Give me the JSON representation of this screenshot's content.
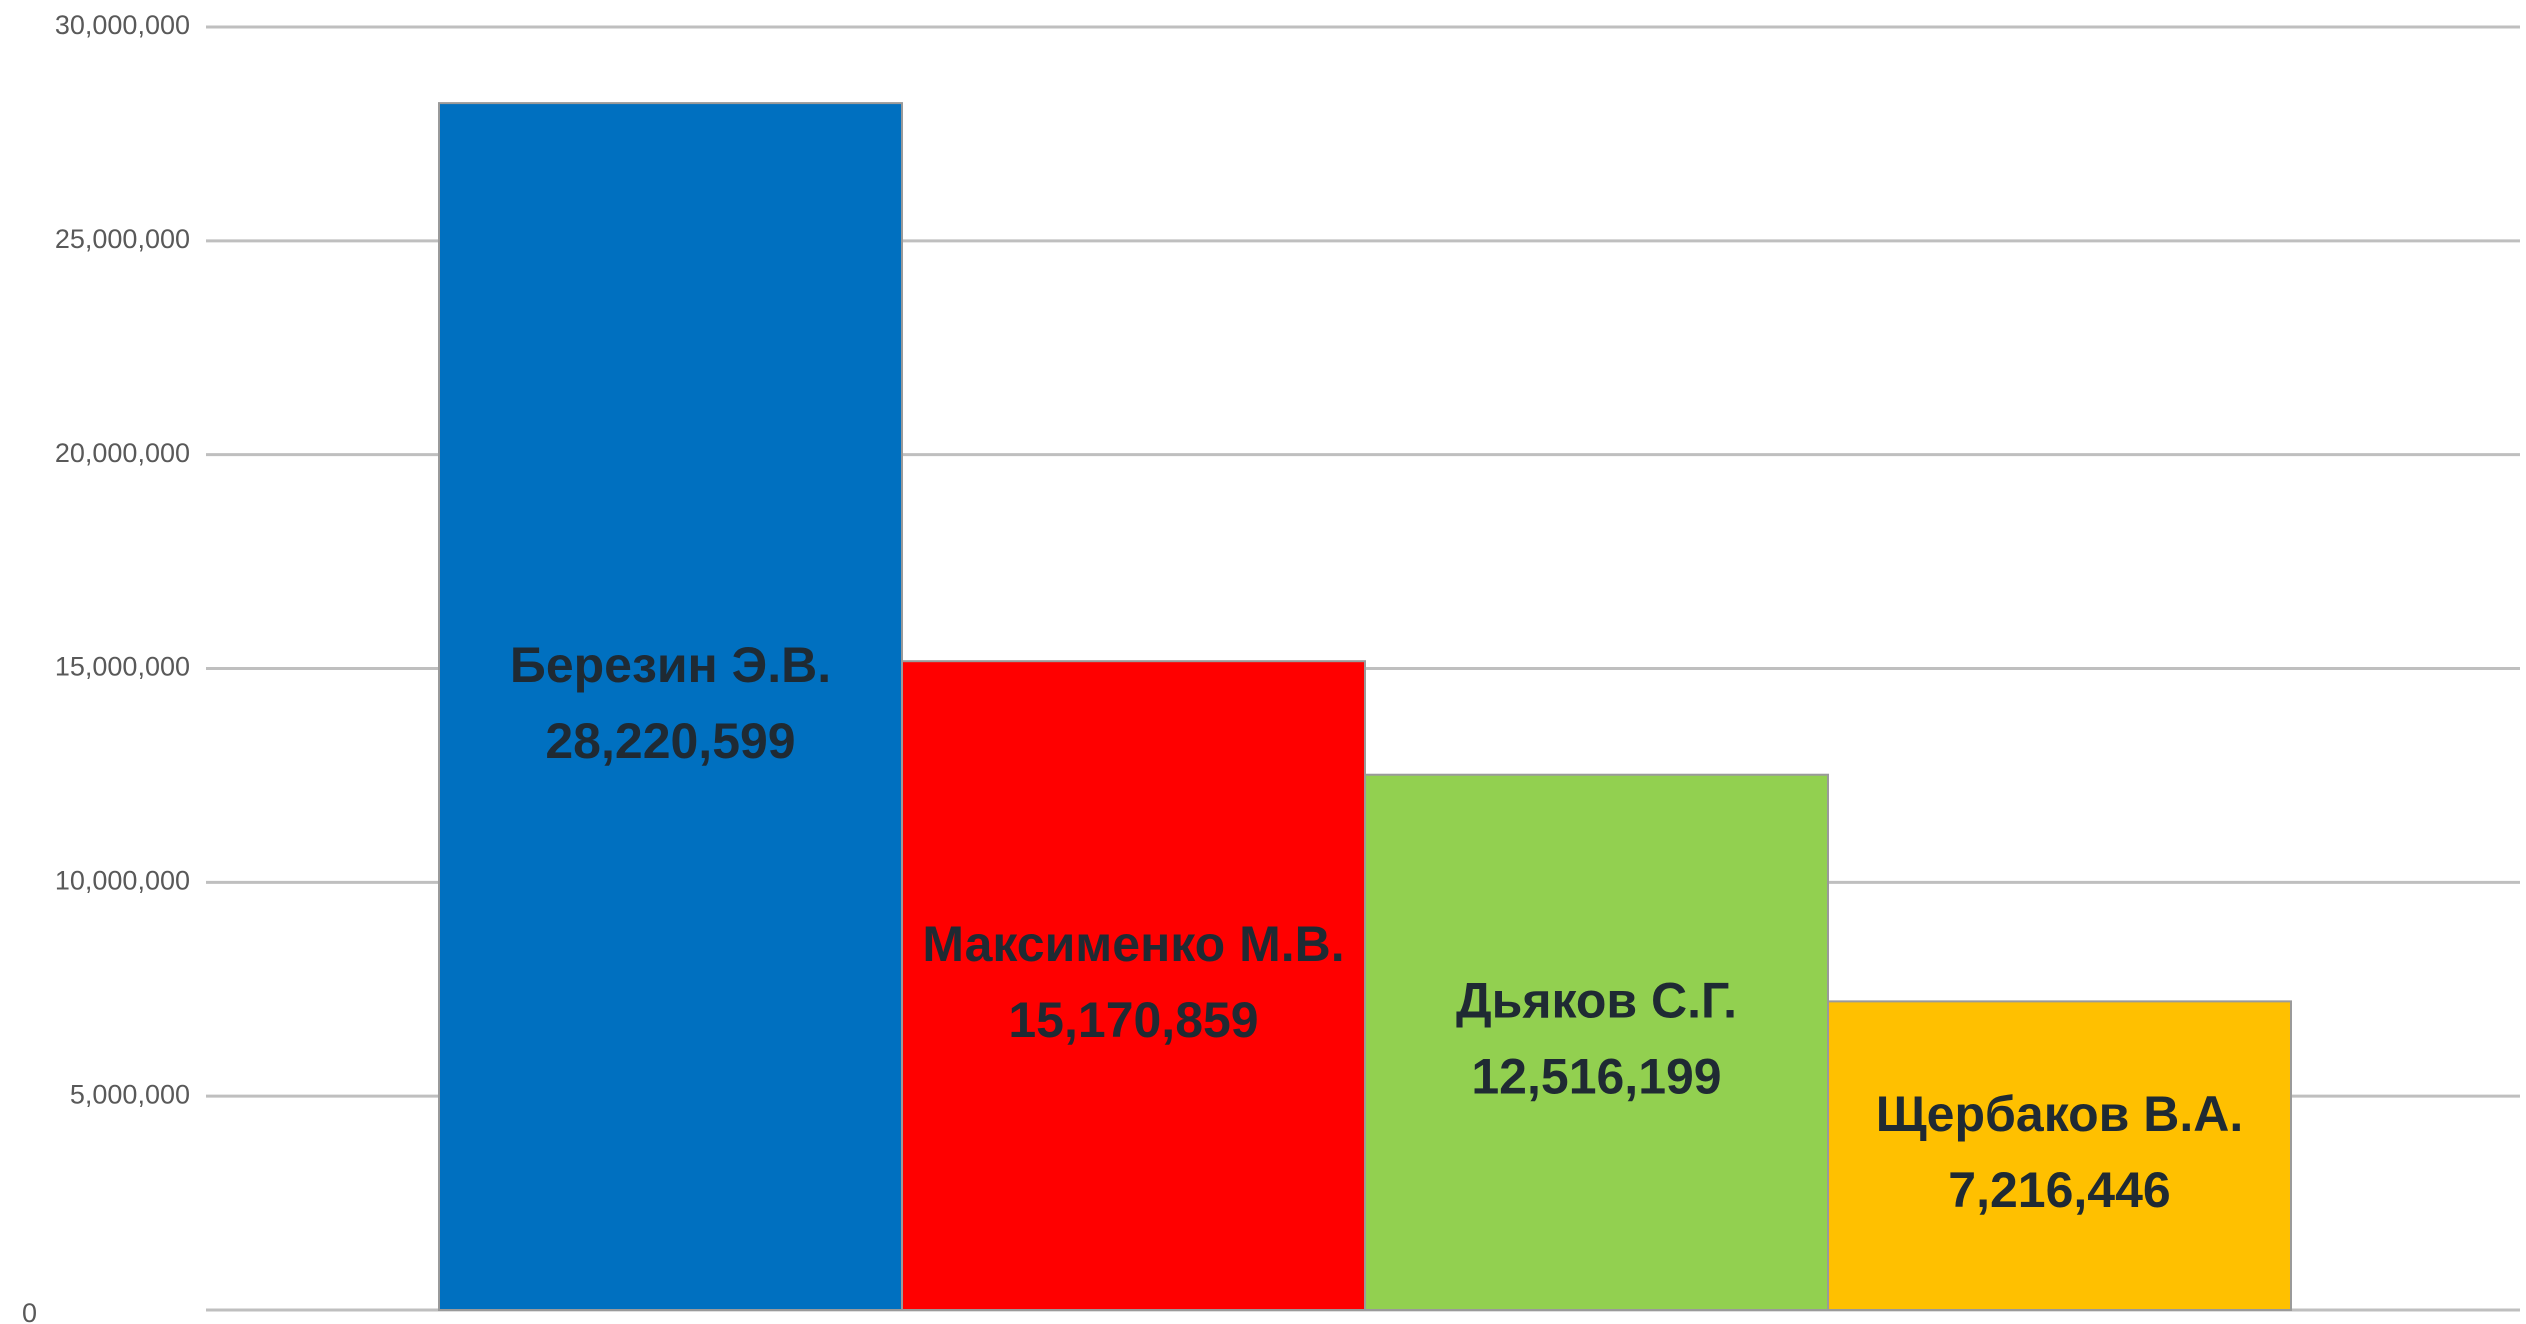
{
  "chart_data": {
    "type": "bar",
    "categories": [
      "Березин Э.В.",
      "Максименко М.В.",
      "Дьяков С.Г.",
      "Щербаков В.А."
    ],
    "values": [
      28220599,
      15170859,
      12516199,
      7216446
    ],
    "value_labels": [
      "28,220,599",
      "15,170,859",
      "12,516,199",
      "7,216,446"
    ],
    "colors": [
      "#0070c0",
      "#ff0000",
      "#92d050",
      "#ffc000"
    ],
    "ylim": [
      0,
      30000000
    ],
    "yticks": [
      0,
      {
        "value": 5000000,
        "label": "5,000,000"
      },
      {
        "value": 10000000,
        "label": "10,000,000"
      },
      {
        "value": 15000000,
        "label": "15,000,000"
      },
      {
        "value": 20000000,
        "label": "20,000,000"
      },
      {
        "value": 25000000,
        "label": "25,000,000"
      },
      {
        "value": 30000000,
        "label": "30,000,000"
      }
    ],
    "grid": true
  }
}
